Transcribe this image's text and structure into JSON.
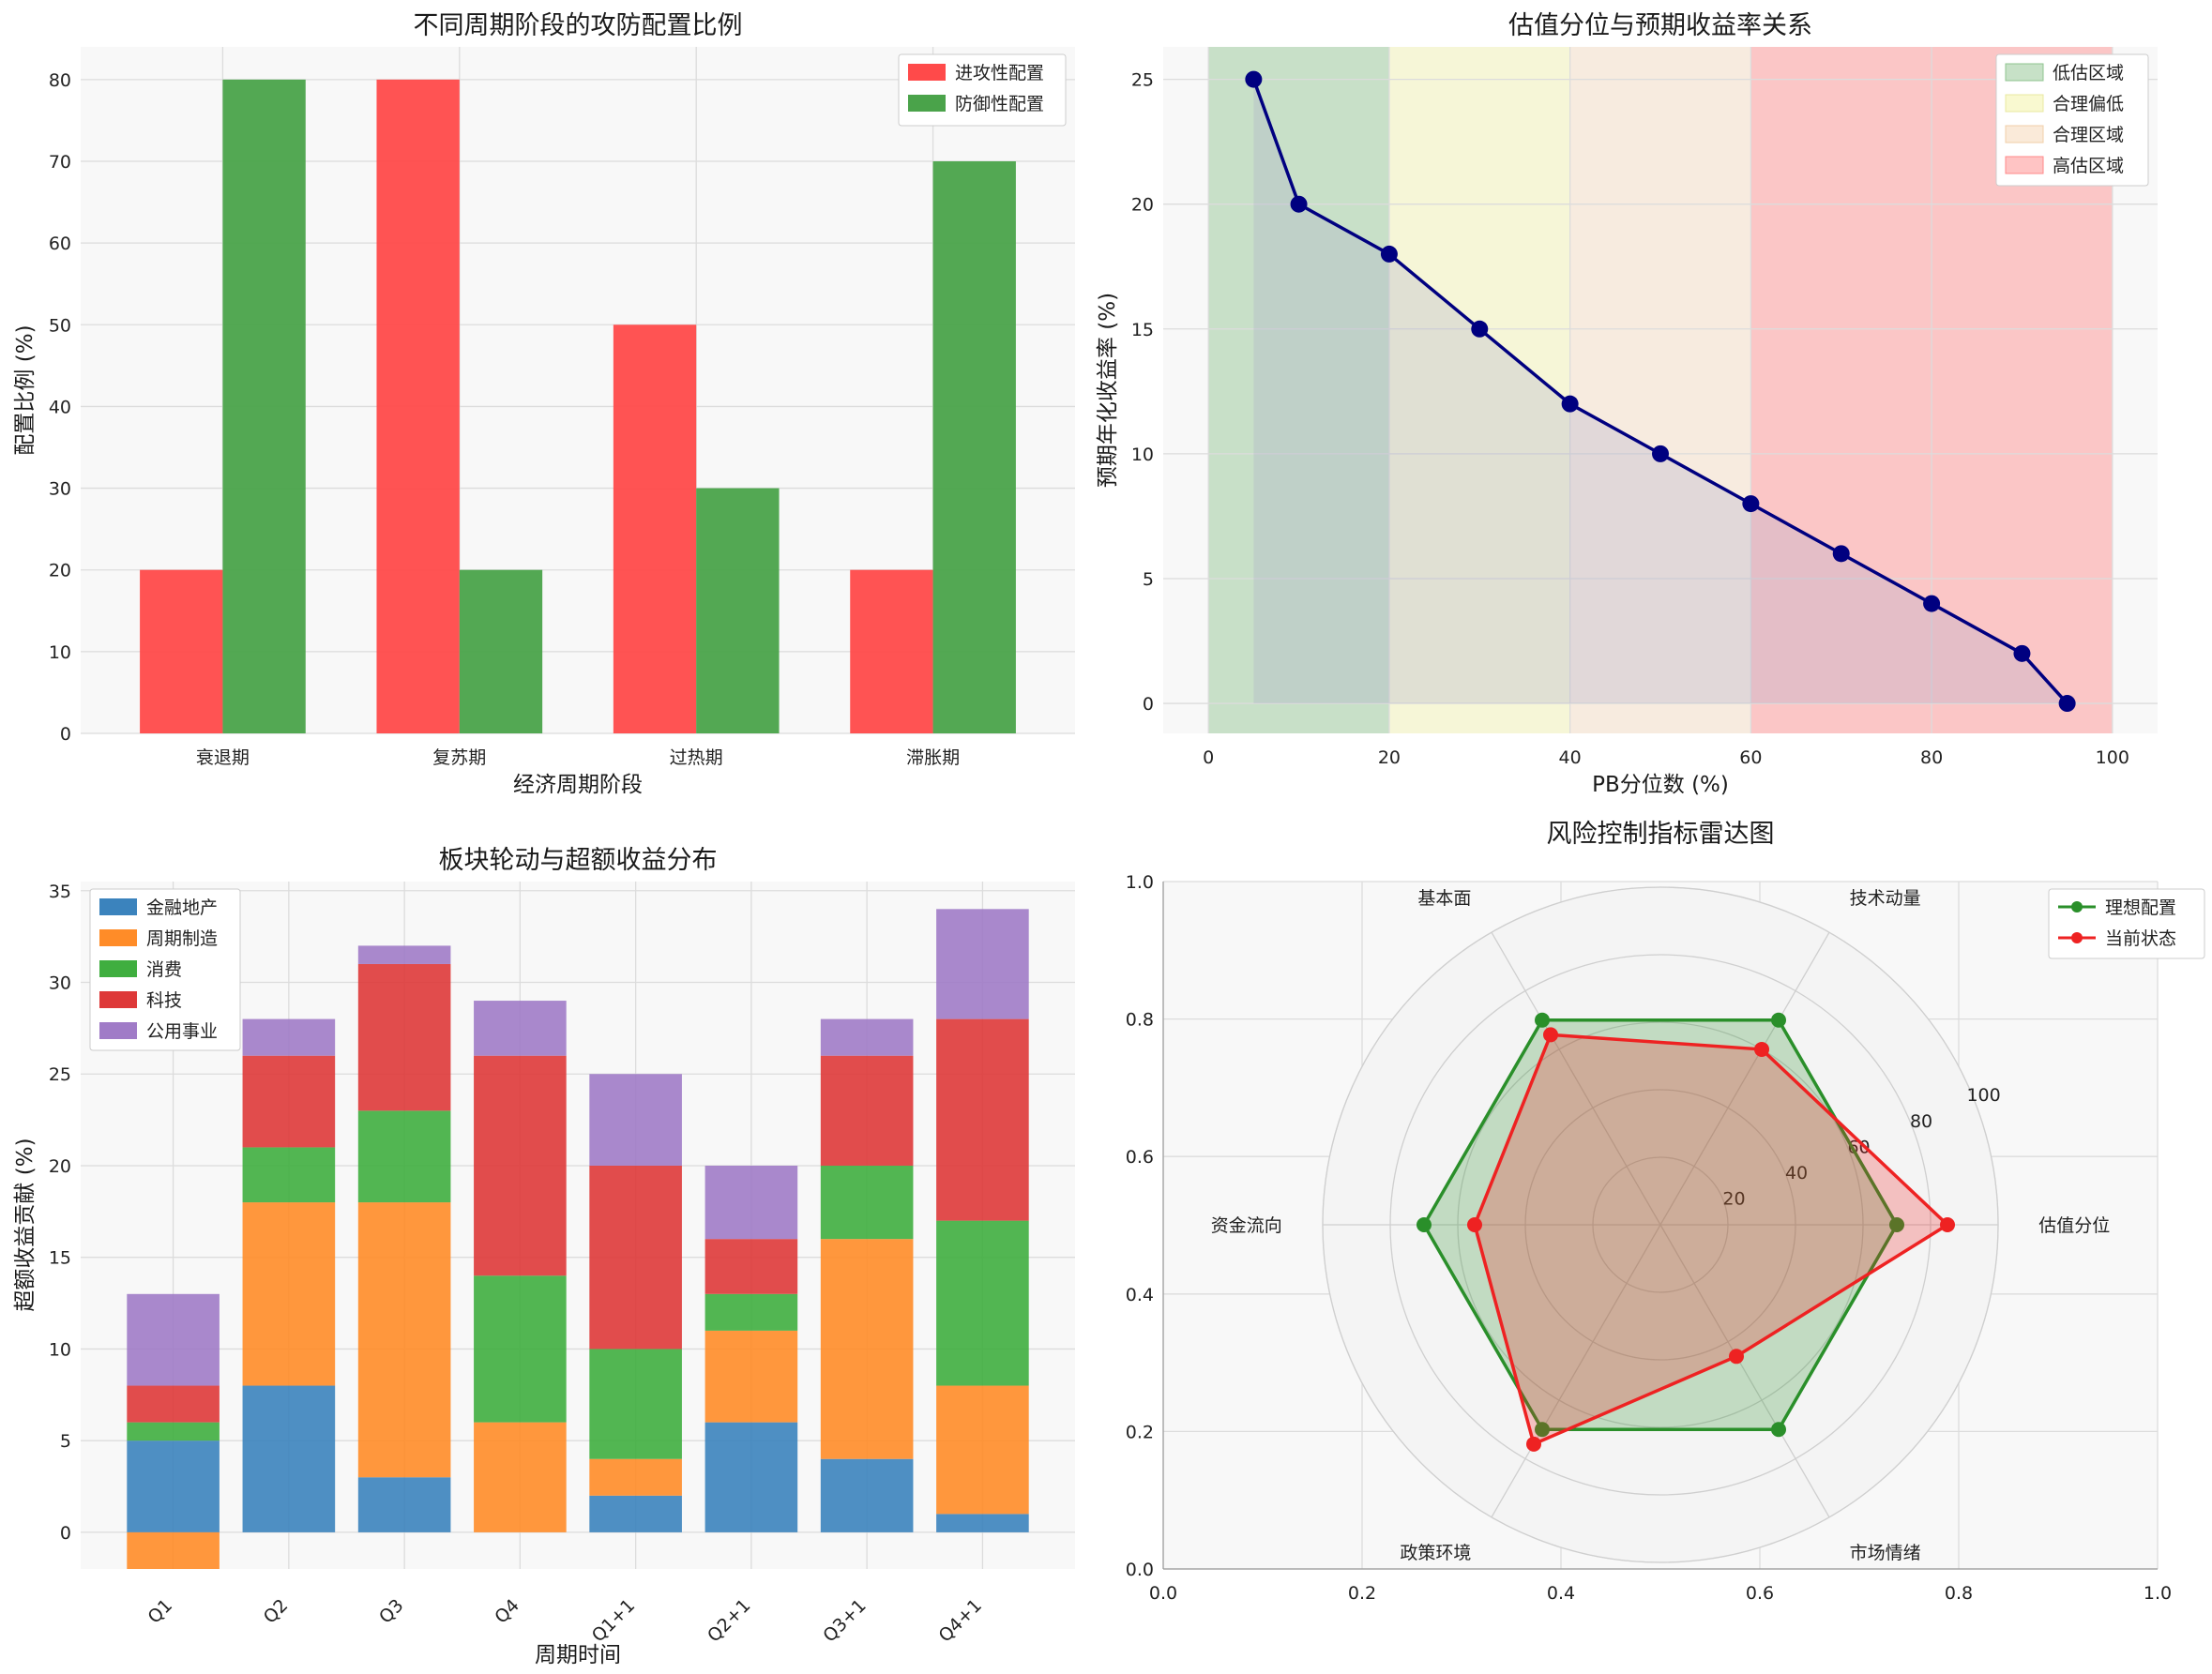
{
  "chart_data": [
    {
      "id": "attack-defense",
      "type": "bar",
      "title": "不同周期阶段的攻防配置比例",
      "xlabel": "经济周期阶段",
      "ylabel": "配置比例 (%)",
      "categories": [
        "衰退期",
        "复苏期",
        "过热期",
        "滞胀期"
      ],
      "ylim": [
        0,
        84
      ],
      "yticks": [
        0,
        10,
        20,
        30,
        40,
        50,
        60,
        70,
        80
      ],
      "series": [
        {
          "name": "进攻性配置",
          "color": "#ff4a4a",
          "values": [
            20,
            80,
            50,
            20
          ]
        },
        {
          "name": "防御性配置",
          "color": "#4aa34a",
          "values": [
            80,
            20,
            30,
            70
          ]
        }
      ],
      "legend": "top-right"
    },
    {
      "id": "valuation-return",
      "type": "line",
      "title": "估值分位与预期收益率关系",
      "xlabel": "PB分位数 (%)",
      "ylabel": "预期年化收益率 (%)",
      "x": [
        5,
        10,
        20,
        30,
        40,
        50,
        60,
        70,
        80,
        90,
        95
      ],
      "y": [
        25,
        20,
        18,
        15,
        12,
        10,
        8,
        6,
        4,
        2,
        0
      ],
      "xlim": [
        -5,
        105
      ],
      "ylim": [
        -1.2,
        26.3
      ],
      "xticks": [
        0,
        20,
        40,
        60,
        80,
        100
      ],
      "yticks": [
        0,
        5,
        10,
        15,
        20,
        25
      ],
      "line_color": "#000080",
      "zones": [
        {
          "name": "低估区域",
          "from": 0,
          "to": 20,
          "color": "#8fc48f"
        },
        {
          "name": "合理偏低",
          "from": 20,
          "to": 40,
          "color": "#f5f5b0"
        },
        {
          "name": "合理区域",
          "from": 40,
          "to": 60,
          "color": "#f7dcc0"
        },
        {
          "name": "高估区域",
          "from": 60,
          "to": 100,
          "color": "#ff8a8a"
        }
      ],
      "legend": "top-right"
    },
    {
      "id": "sector-rotation",
      "type": "bar",
      "stacked": true,
      "title": "板块轮动与超额收益分布",
      "xlabel": "周期时间",
      "ylabel": "超额收益贡献 (%)",
      "categories": [
        "Q1",
        "Q2",
        "Q3",
        "Q4",
        "Q1+1",
        "Q2+1",
        "Q3+1",
        "Q4+1"
      ],
      "ylim": [
        -2,
        35.5
      ],
      "yticks": [
        0,
        5,
        10,
        15,
        20,
        25,
        30,
        35
      ],
      "series": [
        {
          "name": "金融地产",
          "color": "#3b83bd",
          "values": [
            5,
            8,
            3,
            0,
            2,
            6,
            4,
            1
          ]
        },
        {
          "name": "周期制造",
          "color": "#ff8c28",
          "values": [
            -2,
            10,
            15,
            6,
            2,
            5,
            12,
            7
          ]
        },
        {
          "name": "消费",
          "color": "#3fae3f",
          "values": [
            1,
            3,
            5,
            8,
            6,
            2,
            4,
            9
          ]
        },
        {
          "name": "科技",
          "color": "#de3838",
          "values": [
            2,
            5,
            8,
            12,
            10,
            3,
            6,
            11
          ]
        },
        {
          "name": "公用事业",
          "color": "#a07bc7",
          "values": [
            5,
            2,
            1,
            3,
            5,
            4,
            2,
            6
          ]
        }
      ],
      "legend": "top-left"
    },
    {
      "id": "risk-radar",
      "type": "radar",
      "title": "风险控制指标雷达图",
      "axes": [
        "估值分位",
        "技术动量",
        "基本面",
        "资金流向",
        "政策环境",
        "市场情绪"
      ],
      "rmax": 100,
      "rticks": [
        20,
        40,
        60,
        80,
        100
      ],
      "outer_ticks_x": [
        "0.0",
        "0.2",
        "0.4",
        "0.6",
        "0.8",
        "1.0"
      ],
      "outer_ticks_y": [
        "0.0",
        "0.2",
        "0.4",
        "0.6",
        "0.8",
        "1.0"
      ],
      "series": [
        {
          "name": "理想配置",
          "color": "#2a8f2a",
          "values": [
            70,
            70,
            70,
            70,
            70,
            70
          ]
        },
        {
          "name": "当前状态",
          "color": "#ee2222",
          "values": [
            85,
            60,
            65,
            55,
            75,
            45
          ]
        }
      ],
      "legend": "top-right"
    }
  ]
}
